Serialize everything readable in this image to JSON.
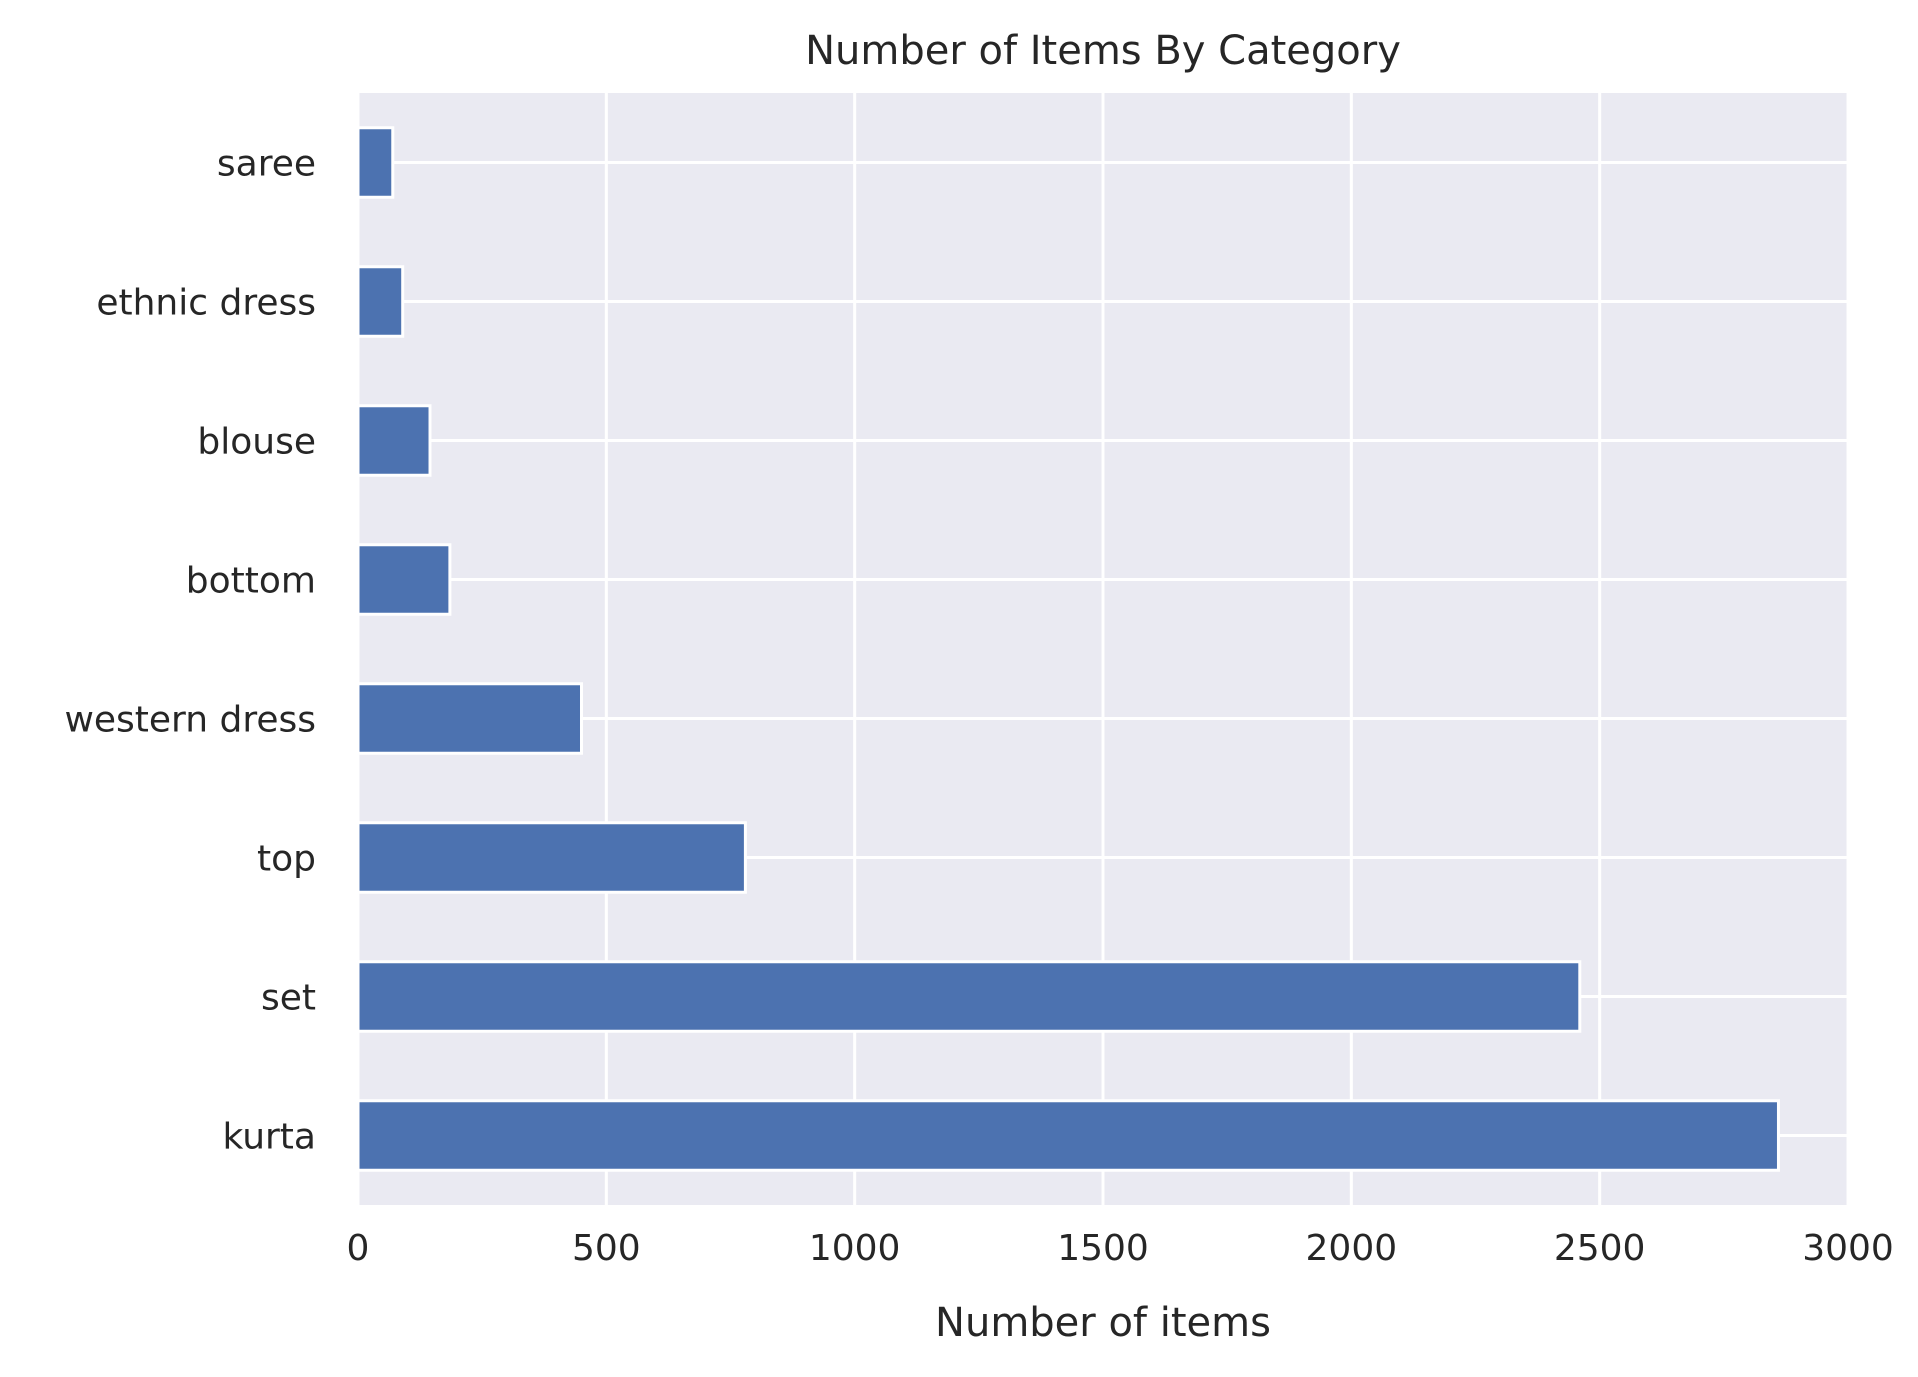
{
  "chart_data": {
    "type": "bar",
    "orientation": "horizontal",
    "title": "Number of Items By Category",
    "xlabel": "Number of items",
    "ylabel": "",
    "categories": [
      "saree",
      "ethnic dress",
      "blouse",
      "bottom",
      "western dress",
      "top",
      "set",
      "kurta"
    ],
    "values": [
      70,
      90,
      145,
      185,
      450,
      780,
      2460,
      2860
    ],
    "xlim": [
      0,
      3000
    ],
    "xticks": [
      "0",
      "500",
      "1000",
      "1500",
      "2000",
      "2500",
      "3000"
    ],
    "grid": true,
    "legend": "none",
    "colors": {
      "bar": "#4C72B0",
      "background": "#EAEAF2",
      "grid": "#FFFFFF",
      "text": "#262626"
    }
  }
}
